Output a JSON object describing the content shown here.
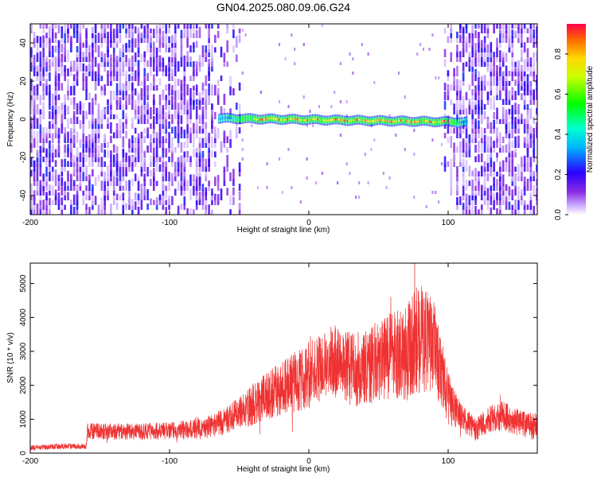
{
  "title": "GN04.2025.080.09.06.G24",
  "chart_data": [
    {
      "type": "heatmap",
      "title": "GN04.2025.080.09.06.G24",
      "xlabel": "Height of straight line (km)",
      "ylabel": "Frequency (Hz)",
      "xlim": [
        -200,
        164
      ],
      "ylim": [
        -50,
        50
      ],
      "xticks": [
        -200,
        -100,
        0,
        100
      ],
      "yticks": [
        -40,
        -20,
        0,
        20,
        40
      ],
      "grid": false,
      "colorbar": {
        "label": "Normalized spectral amplitude",
        "range": [
          0,
          0.95
        ],
        "ticks": [
          0.0,
          0.2,
          0.4,
          0.6,
          0.8
        ],
        "colormap": "hsv-reversed (white/violet low → blue → cyan → green → yellow → red high)"
      },
      "signal_band": {
        "x_range": [
          -65,
          113
        ],
        "frequency_start": 0.5,
        "frequency_end": -1.5,
        "peak_amplitude": 0.95
      },
      "noise_regions": [
        {
          "x_range": [
            -200,
            -55
          ],
          "mean_amplitude": 0.12
        },
        {
          "x_range": [
            100,
            164
          ],
          "mean_amplitude": 0.12
        }
      ]
    },
    {
      "type": "line",
      "xlabel": "Height of straight line (km)",
      "ylabel": "SNR (10 * v/v)",
      "xlim": [
        -200,
        164
      ],
      "ylim": [
        0,
        5600
      ],
      "xticks": [
        -200,
        -100,
        0,
        100
      ],
      "yticks": [
        0,
        1000,
        2000,
        3000,
        4000,
        5000
      ],
      "grid": false,
      "line_color": "#f03232",
      "series": [
        {
          "envelope": {
            "x": [
              -200,
              -182,
              -160,
              -159,
              -150,
              -140,
              -120,
              -100,
              -80,
              -70,
              -60,
              -50,
              -40,
              -30,
              -20,
              -10,
              0,
              10,
              20,
              30,
              40,
              50,
              60,
              70,
              75,
              80,
              90,
              95,
              100,
              110,
              120,
              130,
              140,
              150,
              160,
              164
            ],
            "y_mean": [
              150,
              200,
              200,
              650,
              650,
              620,
              640,
              660,
              700,
              800,
              950,
              1200,
              1400,
              1700,
              1900,
              2100,
              2300,
              2550,
              2750,
              2450,
              2500,
              2700,
              2900,
              3000,
              3250,
              3400,
              3100,
              2400,
              1600,
              1000,
              700,
              1000,
              1100,
              900,
              800,
              800
            ],
            "y_spread": [
              80,
              80,
              80,
              250,
              250,
              250,
              250,
              250,
              300,
              350,
              400,
              450,
              600,
              700,
              800,
              900,
              1000,
              1000,
              1100,
              1100,
              1100,
              1200,
              1300,
              1500,
              1600,
              1600,
              1400,
              1000,
              800,
              400,
              350,
              400,
              450,
              400,
              400,
              400
            ]
          },
          "peak": {
            "x": 76,
            "y": 5600
          }
        }
      ]
    }
  ]
}
